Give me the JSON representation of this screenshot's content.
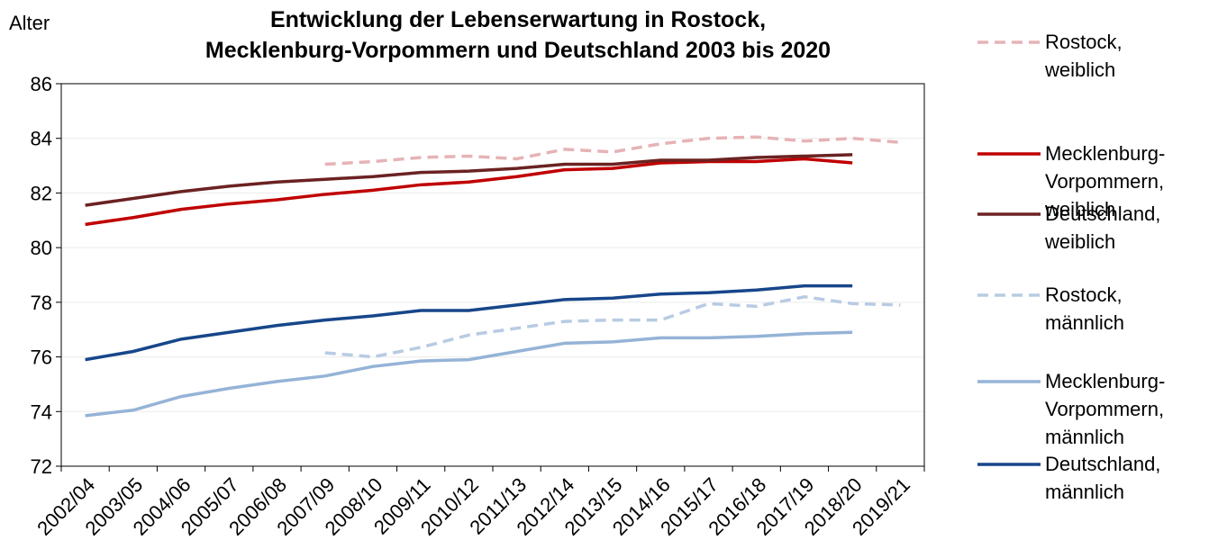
{
  "chart_data": {
    "type": "line",
    "title": "Entwicklung der Lebenserwartung  in Rostock,",
    "subtitle": "Mecklenburg-Vorpommern und Deutschland 2003 bis 2020",
    "ylabel": "Alter",
    "categories": [
      "2002/04",
      "2003/05",
      "2004/06",
      "2005/07",
      "2006/08",
      "2007/09",
      "2008/10",
      "2009/11",
      "2010/12",
      "2011/13",
      "2012/14",
      "2013/15",
      "2014/16",
      "2015/17",
      "2016/18",
      "2017/19",
      "2018/20",
      "2019/21"
    ],
    "ylim": [
      72,
      86
    ],
    "yticks": [
      72,
      74,
      76,
      78,
      80,
      82,
      84,
      86
    ],
    "grid": true,
    "series": [
      {
        "name": "Rostock, weiblich",
        "color": "#e6b3b6",
        "dashed": true,
        "values": [
          null,
          null,
          null,
          null,
          null,
          83.05,
          83.15,
          83.3,
          83.35,
          83.25,
          83.6,
          83.5,
          83.8,
          84.0,
          84.05,
          83.9,
          84.0,
          83.85
        ]
      },
      {
        "name": "Mecklenburg-Vorpommern, weiblich",
        "color": "#c00000",
        "dashed": false,
        "values": [
          80.85,
          81.1,
          81.4,
          81.6,
          81.75,
          81.95,
          82.1,
          82.3,
          82.4,
          82.6,
          82.85,
          82.9,
          83.1,
          83.15,
          83.15,
          83.25,
          83.1,
          null
        ]
      },
      {
        "name": "Deutschland, weiblich",
        "color": "#6b2222",
        "dashed": false,
        "values": [
          81.55,
          81.8,
          82.05,
          82.25,
          82.4,
          82.5,
          82.6,
          82.75,
          82.8,
          82.9,
          83.05,
          83.05,
          83.2,
          83.2,
          83.3,
          83.35,
          83.4,
          null
        ]
      },
      {
        "name": "Rostock, männlich",
        "color": "#b8cbe3",
        "dashed": true,
        "values": [
          null,
          null,
          null,
          null,
          null,
          76.15,
          76.0,
          76.35,
          76.8,
          77.05,
          77.3,
          77.35,
          77.35,
          77.95,
          77.85,
          78.2,
          77.95,
          77.9
        ]
      },
      {
        "name": "Mecklenburg-Vorpommern, männlich",
        "color": "#95b3d7",
        "dashed": false,
        "values": [
          73.85,
          74.05,
          74.55,
          74.85,
          75.1,
          75.3,
          75.65,
          75.85,
          75.9,
          76.2,
          76.5,
          76.55,
          76.7,
          76.7,
          76.75,
          76.85,
          76.9,
          null
        ]
      },
      {
        "name": "Deutschland, männlich",
        "color": "#17468a",
        "dashed": false,
        "values": [
          75.9,
          76.2,
          76.65,
          76.9,
          77.15,
          77.35,
          77.5,
          77.7,
          77.7,
          77.9,
          78.1,
          78.15,
          78.3,
          78.35,
          78.45,
          78.6,
          78.6,
          null
        ]
      }
    ]
  }
}
